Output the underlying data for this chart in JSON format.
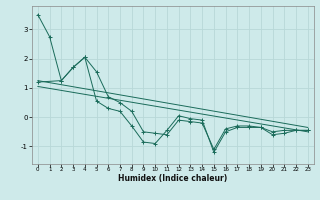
{
  "title": "",
  "xlabel": "Humidex (Indice chaleur)",
  "bg_color": "#ceeaea",
  "grid_color": "#b8d8d8",
  "line_color": "#1a6b5a",
  "xlim": [
    -0.5,
    23.5
  ],
  "ylim": [
    -1.6,
    3.8
  ],
  "yticks": [
    -1,
    0,
    1,
    2,
    3
  ],
  "xticks": [
    0,
    1,
    2,
    3,
    4,
    5,
    6,
    7,
    8,
    9,
    10,
    11,
    12,
    13,
    14,
    15,
    16,
    17,
    18,
    19,
    20,
    21,
    22,
    23
  ],
  "series1_x": [
    0,
    1,
    2,
    3,
    4,
    5,
    6,
    7,
    8,
    9,
    10,
    11,
    12,
    13,
    14,
    15,
    16,
    17,
    18,
    19,
    20,
    21,
    22,
    23
  ],
  "series1_y": [
    3.5,
    2.75,
    1.25,
    1.7,
    2.05,
    0.55,
    0.3,
    0.2,
    -0.3,
    -0.85,
    -0.9,
    -0.45,
    0.05,
    -0.05,
    -0.1,
    -1.2,
    -0.5,
    -0.35,
    -0.35,
    -0.35,
    -0.6,
    -0.55,
    -0.45,
    -0.45
  ],
  "series2_x": [
    0,
    2,
    3,
    4,
    5,
    6,
    7,
    8,
    9,
    10,
    11,
    12,
    13,
    14,
    15,
    16,
    17,
    18,
    19,
    20,
    21,
    22,
    23
  ],
  "series2_y": [
    1.2,
    1.25,
    1.7,
    2.05,
    1.55,
    0.7,
    0.5,
    0.2,
    -0.5,
    -0.55,
    -0.6,
    -0.1,
    -0.15,
    -0.2,
    -1.1,
    -0.4,
    -0.3,
    -0.3,
    -0.35,
    -0.5,
    -0.45,
    -0.45,
    -0.45
  ],
  "trend1_x": [
    0,
    23
  ],
  "trend1_y": [
    1.25,
    -0.35
  ],
  "trend2_x": [
    0,
    23
  ],
  "trend2_y": [
    1.05,
    -0.5
  ]
}
